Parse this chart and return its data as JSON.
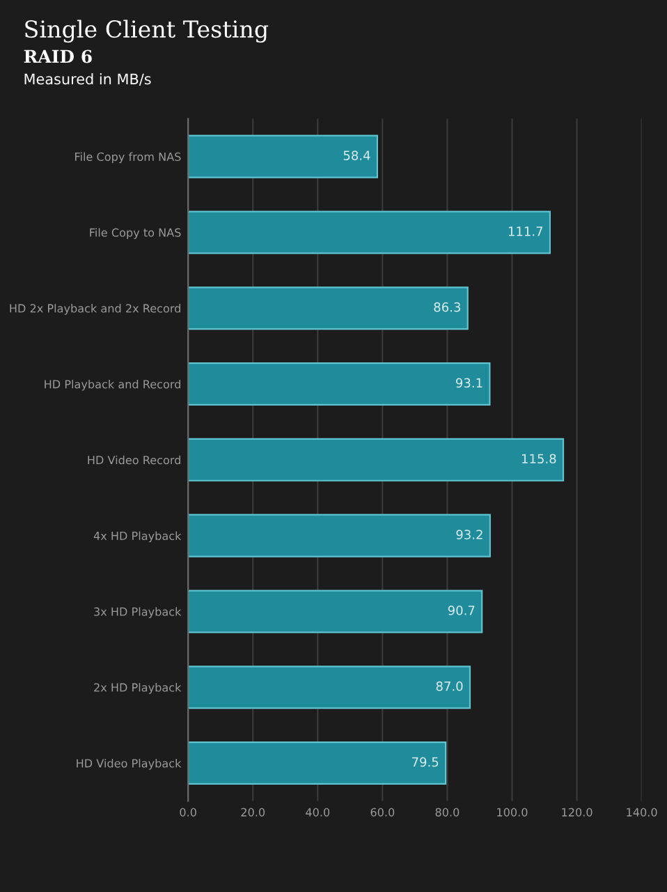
{
  "chart_data": {
    "type": "bar",
    "orientation": "horizontal",
    "title": "Single Client Testing",
    "subtitle": "RAID 6",
    "annotations": [
      "Measured in MB/s"
    ],
    "categories": [
      "File Copy from NAS",
      "File Copy to NAS",
      "HD 2x Playback and 2x Record",
      "HD Playback and Record",
      "HD Video Record",
      "4x HD Playback",
      "3x HD Playback",
      "2x HD Playback",
      "HD Video Playback"
    ],
    "values": [
      58.4,
      111.7,
      86.3,
      93.1,
      115.8,
      93.2,
      90.7,
      87.0,
      79.5
    ],
    "value_labels": [
      "58.4",
      "111.7",
      "86.3",
      "93.1",
      "115.8",
      "93.2",
      "90.7",
      "87.0",
      "79.5"
    ],
    "color": "#1f8b9b",
    "xlim": [
      0,
      140
    ],
    "xticks": [
      {
        "value": 0,
        "label": "0.0"
      },
      {
        "value": 20,
        "label": "20.0"
      },
      {
        "value": 40,
        "label": "40.0"
      },
      {
        "value": 60,
        "label": "60.0"
      },
      {
        "value": 80,
        "label": "80.0"
      },
      {
        "value": 100,
        "label": "100.0"
      },
      {
        "value": 120,
        "label": "120.0"
      },
      {
        "value": 140,
        "label": "140.0"
      }
    ],
    "grid": "x",
    "legend": false
  }
}
